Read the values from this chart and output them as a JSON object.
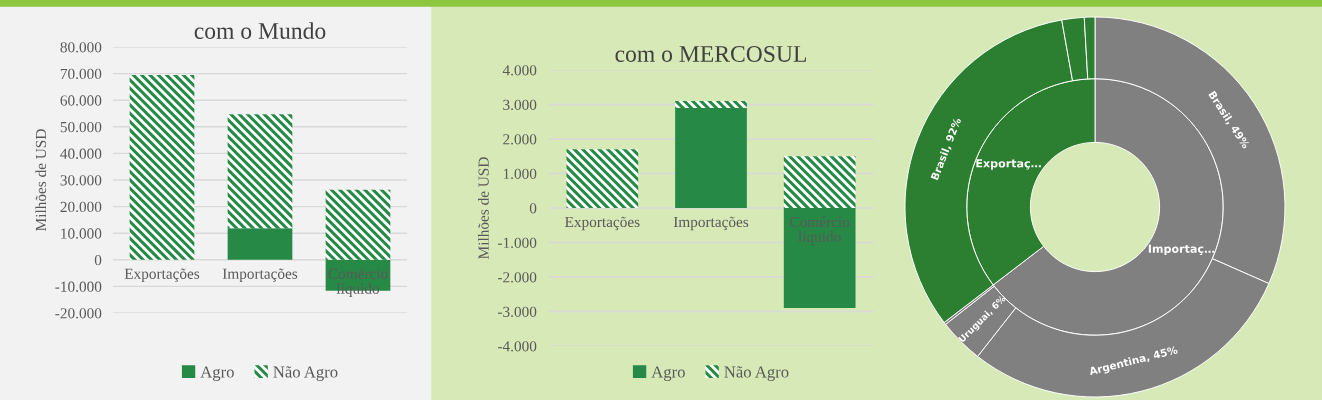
{
  "chart_data": [
    {
      "type": "bar",
      "stacked": true,
      "title": "com o Mundo",
      "ylabel": "Milhões de USD",
      "categories": [
        "Exportações",
        "Importações",
        "Comércio líquido"
      ],
      "series": [
        {
          "name": "Agro",
          "color": "#268a46",
          "values": [
            0,
            11900,
            -11600
          ]
        },
        {
          "name": "Não Agro",
          "color": "#268a46",
          "values": [
            69500,
            42800,
            26300
          ]
        }
      ],
      "ylim": [
        -20000,
        80000
      ],
      "yticks": [
        {
          "value": -20000,
          "label": "-20.000"
        },
        {
          "value": -10000,
          "label": "-10.000"
        },
        0,
        {
          "value": 10000,
          "label": "10.000"
        },
        {
          "value": 20000,
          "label": "20.000"
        },
        {
          "value": 30000,
          "label": "30.000"
        },
        {
          "value": 40000,
          "label": "40.000"
        },
        {
          "value": 50000,
          "label": "50.000"
        },
        {
          "value": 60000,
          "label": "60.000"
        },
        {
          "value": 70000,
          "label": "70.000"
        },
        {
          "value": 80000,
          "label": "80.000"
        }
      ],
      "grid": "y",
      "legend": "bottom"
    },
    {
      "type": "bar",
      "stacked": true,
      "title": "com o MERCOSUL",
      "ylabel": "Milhões de USD",
      "categories": [
        "Exportações",
        "Importações",
        "Comércio líquido"
      ],
      "series": [
        {
          "name": "Agro",
          "color": "#268a46",
          "values": [
            0,
            2900,
            -2900
          ]
        },
        {
          "name": "Não Agro",
          "color": "#268a46",
          "values": [
            1700,
            200,
            1500
          ]
        }
      ],
      "ylim": [
        -4000,
        4000
      ],
      "yticks": [
        {
          "value": -4000,
          "label": "-4.000"
        },
        {
          "value": -3000,
          "label": "-3.000"
        },
        {
          "value": -2000,
          "label": "-2.000"
        },
        {
          "value": -1000,
          "label": "-1.000"
        },
        0,
        {
          "value": 1000,
          "label": "1.000"
        },
        {
          "value": 2000,
          "label": "2.000"
        },
        {
          "value": 3000,
          "label": "3.000"
        },
        {
          "value": 4000,
          "label": "4.000"
        }
      ],
      "grid": "y",
      "legend": "bottom"
    },
    {
      "type": "donut",
      "categories": [
        null,
        null,
        null,
        null,
        null,
        null,
        null
      ],
      "series": [
        {
          "values": [
            64.6,
            null,
            null,
            null,
            35.4,
            null,
            null
          ],
          "colors": [
            "#808080",
            null,
            null,
            null,
            "#2c7f30",
            null,
            null
          ]
        },
        {
          "values": [
            31.6,
            29.0,
            3.8,
            0.2,
            32.6,
            1.9,
            0.9
          ],
          "colors": [
            "#808080",
            "#808080",
            "#808080",
            "#808080",
            "#2c7f30",
            "#2c7f30",
            "#2c7f30"
          ]
        }
      ],
      "annotations": [
        "Importaç…",
        "Exportaç…",
        "Brasil, 49%",
        "Argentina, 45%",
        "Uruguai, 6%",
        "Brasil, 92%"
      ]
    }
  ]
}
